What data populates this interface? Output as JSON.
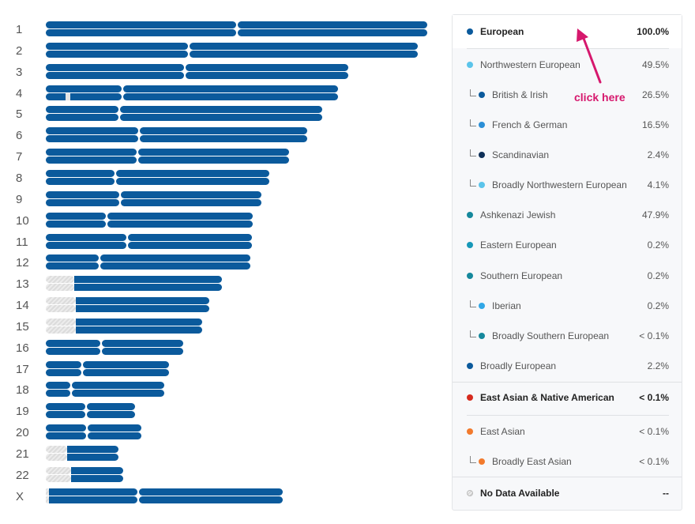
{
  "chromosomes": [
    {
      "label": "1",
      "length": 1.0,
      "centromere": 0.501,
      "nodata_left": 0,
      "gaps": []
    },
    {
      "label": "2",
      "length": 0.975,
      "centromere": 0.375,
      "nodata_left": 0,
      "gaps": []
    },
    {
      "label": "3",
      "length": 0.793,
      "centromere": 0.364,
      "nodata_left": 0,
      "gaps": []
    },
    {
      "label": "4",
      "length": 0.766,
      "centromere": 0.201,
      "nodata_left": 0,
      "gaps": [
        {
          "strand": 2,
          "from": 0.052,
          "to": 0.064
        }
      ]
    },
    {
      "label": "5",
      "length": 0.725,
      "centromere": 0.193,
      "nodata_left": 0,
      "gaps": []
    },
    {
      "label": "6",
      "length": 0.685,
      "centromere": 0.244,
      "nodata_left": 0,
      "gaps": []
    },
    {
      "label": "7",
      "length": 0.638,
      "centromere": 0.24,
      "nodata_left": 0,
      "gaps": []
    },
    {
      "label": "8",
      "length": 0.586,
      "centromere": 0.182,
      "nodata_left": 0,
      "gaps": []
    },
    {
      "label": "9",
      "length": 0.565,
      "centromere": 0.195,
      "nodata_left": 0,
      "gaps": []
    },
    {
      "label": "10",
      "length": 0.542,
      "centromere": 0.159,
      "nodata_left": 0,
      "gaps": []
    },
    {
      "label": "11",
      "length": 0.54,
      "centromere": 0.213,
      "nodata_left": 0,
      "gaps": []
    },
    {
      "label": "12",
      "length": 0.536,
      "centromere": 0.141,
      "nodata_left": 0,
      "gaps": []
    },
    {
      "label": "13",
      "length": 0.462,
      "centromere": 0.075,
      "nodata_left": 0.075,
      "gaps": []
    },
    {
      "label": "14",
      "length": 0.429,
      "centromere": 0.079,
      "nodata_left": 0.079,
      "gaps": []
    },
    {
      "label": "15",
      "length": 0.41,
      "centromere": 0.079,
      "nodata_left": 0.079,
      "gaps": []
    },
    {
      "label": "16",
      "length": 0.36,
      "centromere": 0.145,
      "nodata_left": 0,
      "gaps": []
    },
    {
      "label": "17",
      "length": 0.323,
      "centromere": 0.095,
      "nodata_left": 0,
      "gaps": []
    },
    {
      "label": "18",
      "length": 0.311,
      "centromere": 0.066,
      "nodata_left": 0,
      "gaps": []
    },
    {
      "label": "19",
      "length": 0.234,
      "centromere": 0.106,
      "nodata_left": 0,
      "gaps": []
    },
    {
      "label": "20",
      "length": 0.251,
      "centromere": 0.108,
      "nodata_left": 0,
      "gaps": []
    },
    {
      "label": "21",
      "length": 0.19,
      "centromere": 0.056,
      "nodata_left": 0.056,
      "gaps": []
    },
    {
      "label": "22",
      "length": 0.203,
      "centromere": 0.066,
      "nodata_left": 0.066,
      "gaps": []
    },
    {
      "label": "X",
      "length": 0.621,
      "centromere": 0.242,
      "nodata_left": 0.008,
      "gaps": []
    }
  ],
  "colors": {
    "european": "#0b5a9c",
    "northwestern": "#5bc4ea",
    "british_irish": "#0b5a9c",
    "french_german": "#2b8fd6",
    "scandinavian": "#0e2f57",
    "broadly_nw": "#5bc4ea",
    "ashkenazi": "#15889c",
    "eastern": "#1798b8",
    "southern": "#15889c",
    "iberian": "#31a7e6",
    "broadly_southern": "#15889c",
    "broadly_european": "#0b5a9c",
    "east_asian_native": "#d62a1e",
    "east_asian": "#f27a2d",
    "broadly_east_asian": "#f27a2d",
    "accent_annotation": "#d6186d"
  },
  "panel": {
    "rows": [
      {
        "name": "European",
        "pct": "100.0%",
        "level": "top",
        "color_key": "european",
        "selected": true
      },
      {
        "name": "Northwestern European",
        "pct": "49.5%",
        "level": 0,
        "color_key": "northwestern"
      },
      {
        "name": "British & Irish",
        "pct": "26.5%",
        "level": 1,
        "color_key": "british_irish"
      },
      {
        "name": "French & German",
        "pct": "16.5%",
        "level": 1,
        "color_key": "french_german"
      },
      {
        "name": "Scandinavian",
        "pct": "2.4%",
        "level": 1,
        "color_key": "scandinavian"
      },
      {
        "name": "Broadly Northwestern European",
        "pct": "4.1%",
        "level": 1,
        "color_key": "broadly_nw"
      },
      {
        "name": "Ashkenazi Jewish",
        "pct": "47.9%",
        "level": 0,
        "color_key": "ashkenazi"
      },
      {
        "name": "Eastern European",
        "pct": "0.2%",
        "level": 0,
        "color_key": "eastern"
      },
      {
        "name": "Southern European",
        "pct": "0.2%",
        "level": 0,
        "color_key": "southern"
      },
      {
        "name": "Iberian",
        "pct": "0.2%",
        "level": 1,
        "color_key": "iberian"
      },
      {
        "name": "Broadly Southern European",
        "pct": "< 0.1%",
        "level": 1,
        "color_key": "broadly_southern"
      },
      {
        "name": "Broadly European",
        "pct": "2.2%",
        "level": 0,
        "color_key": "broadly_european"
      },
      {
        "name": "East Asian & Native American",
        "pct": "< 0.1%",
        "level": "top",
        "color_key": "east_asian_native"
      },
      {
        "name": "East Asian",
        "pct": "< 0.1%",
        "level": 0,
        "color_key": "east_asian"
      },
      {
        "name": "Broadly East Asian",
        "pct": "< 0.1%",
        "level": 1,
        "color_key": "broadly_east_asian"
      },
      {
        "name": "No Data Available",
        "pct": "--",
        "level": "top",
        "color_key": "nodata"
      }
    ]
  },
  "annotation": {
    "label": "click here",
    "icon": "arrow-up-left-icon"
  }
}
